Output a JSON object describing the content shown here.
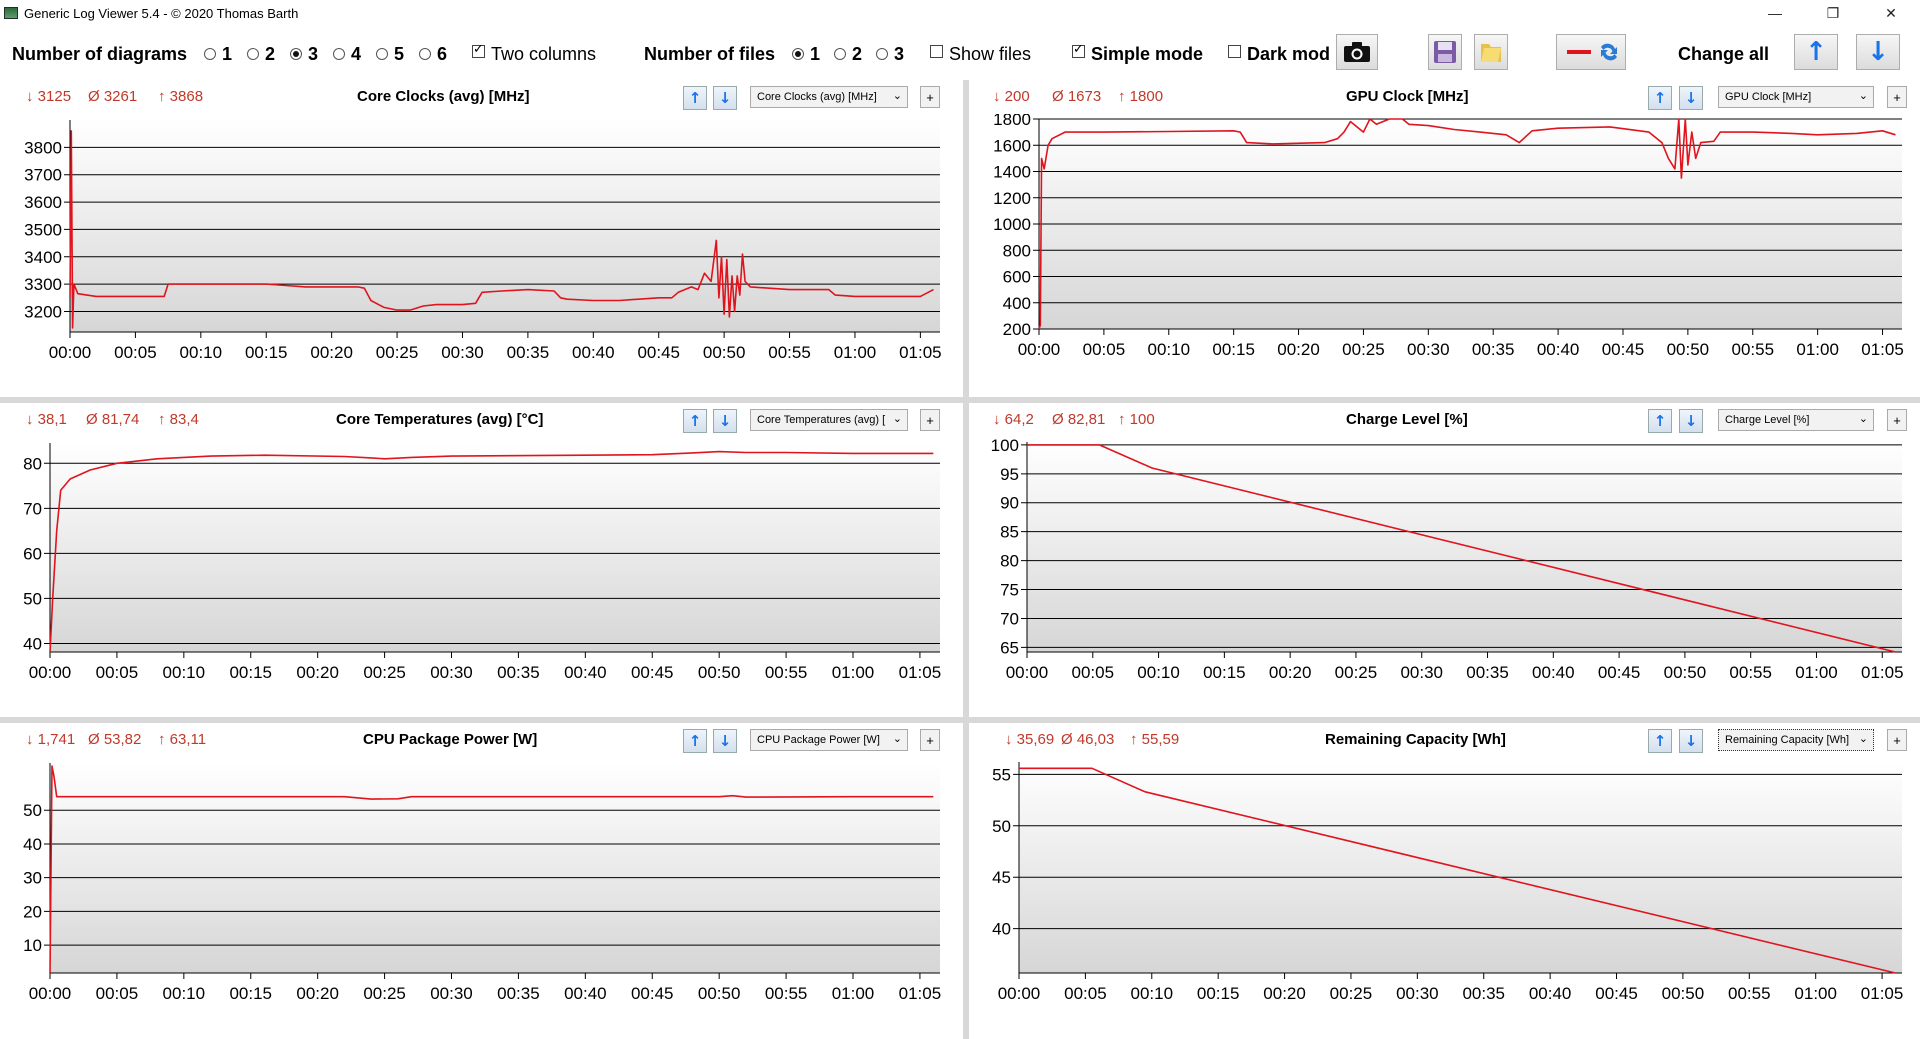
{
  "window": {
    "title": "Generic Log Viewer 5.4 - © 2020 Thomas Barth",
    "controls": [
      "—",
      "❐",
      "✕"
    ]
  },
  "toolbar": {
    "num_diagrams_label": "Number of diagrams",
    "diagram_options": [
      "1",
      "2",
      "3",
      "4",
      "5",
      "6"
    ],
    "diagram_selected": "3",
    "two_columns_label": "Two columns",
    "two_columns_checked": true,
    "num_files_label": "Number of files",
    "file_options": [
      "1",
      "2",
      "3"
    ],
    "file_selected": "1",
    "show_files_label": "Show files",
    "simple_mode_label": "Simple mode",
    "simple_mode_checked": true,
    "dark_mode_label": "Dark mod",
    "change_all_label": "Change all"
  },
  "colors": {
    "line": "#e0141e",
    "stat": "#c0392b",
    "accent": "#1a73e8"
  },
  "panels": [
    {
      "min": "↓ 3125",
      "avg": "Ø 3261",
      "max": "↑ 3868",
      "title": "Core Clocks (avg) [MHz]",
      "combo": "Core Clocks (avg) [MHz]"
    },
    {
      "min": "↓ 200",
      "avg": "Ø 1673",
      "max": "↑ 1800",
      "title": "GPU Clock [MHz]",
      "combo": "GPU Clock [MHz]"
    },
    {
      "min": "↓ 38,1",
      "avg": "Ø 81,74",
      "max": "↑ 83,4",
      "title": "Core Temperatures (avg) [°C]",
      "combo": "Core Temperatures (avg) ["
    },
    {
      "min": "↓ 64,2",
      "avg": "Ø 82,81",
      "max": "↑ 100",
      "title": "Charge Level [%]",
      "combo": "Charge Level [%]"
    },
    {
      "min": "↓ 1,741",
      "avg": "Ø 53,82",
      "max": "↑ 63,11",
      "title": "CPU Package Power [W]",
      "combo": "CPU Package Power [W]"
    },
    {
      "min": "↓ 35,69",
      "avg": "Ø 46,03",
      "max": "↑ 55,59",
      "title": "Remaining Capacity [Wh]",
      "combo": "Remaining Capacity [Wh]"
    }
  ],
  "chart_data": [
    {
      "type": "line",
      "title": "Core Clocks (avg) [MHz]",
      "x_ticks": [
        "00:00",
        "00:05",
        "00:10",
        "00:15",
        "00:20",
        "00:25",
        "00:30",
        "00:35",
        "00:40",
        "00:45",
        "00:50",
        "00:55",
        "01:00",
        "01:05"
      ],
      "y_ticks": [
        3200,
        3300,
        3400,
        3500,
        3600,
        3700,
        3800
      ],
      "ylim": [
        3125,
        3900
      ],
      "xlim": [
        0,
        66.5
      ],
      "series": [
        {
          "points": [
            [
              0,
              3250
            ],
            [
              0.1,
              3860
            ],
            [
              0.2,
              3140
            ],
            [
              0.3,
              3300
            ],
            [
              0.6,
              3265
            ],
            [
              2,
              3255
            ],
            [
              5,
              3255
            ],
            [
              7.2,
              3255
            ],
            [
              7.5,
              3300
            ],
            [
              10,
              3300
            ],
            [
              15,
              3300
            ],
            [
              16.5,
              3295
            ],
            [
              18,
              3290
            ],
            [
              22,
              3290
            ],
            [
              22.5,
              3285
            ],
            [
              23,
              3240
            ],
            [
              24,
              3215
            ],
            [
              25,
              3205
            ],
            [
              26,
              3205
            ],
            [
              27,
              3220
            ],
            [
              28,
              3225
            ],
            [
              30,
              3225
            ],
            [
              31,
              3230
            ],
            [
              31.5,
              3270
            ],
            [
              33,
              3275
            ],
            [
              35,
              3280
            ],
            [
              37,
              3275
            ],
            [
              37.5,
              3250
            ],
            [
              38,
              3245
            ],
            [
              40,
              3240
            ],
            [
              42,
              3240
            ],
            [
              45,
              3250
            ],
            [
              46,
              3250
            ],
            [
              46.5,
              3270
            ],
            [
              47.5,
              3290
            ],
            [
              48,
              3280
            ],
            [
              48.5,
              3340
            ],
            [
              49,
              3310
            ],
            [
              49.4,
              3460
            ],
            [
              49.6,
              3250
            ],
            [
              49.8,
              3400
            ],
            [
              50,
              3190
            ],
            [
              50.2,
              3390
            ],
            [
              50.4,
              3180
            ],
            [
              50.6,
              3330
            ],
            [
              50.8,
              3200
            ],
            [
              51,
              3330
            ],
            [
              51.2,
              3260
            ],
            [
              51.4,
              3410
            ],
            [
              51.6,
              3310
            ],
            [
              52,
              3290
            ],
            [
              55,
              3280
            ],
            [
              58,
              3280
            ],
            [
              58.5,
              3260
            ],
            [
              60,
              3255
            ],
            [
              63,
              3255
            ],
            [
              65,
              3255
            ],
            [
              66,
              3280
            ]
          ]
        }
      ]
    },
    {
      "type": "line",
      "title": "GPU Clock [MHz]",
      "x_ticks": [
        "00:00",
        "00:05",
        "00:10",
        "00:15",
        "00:20",
        "00:25",
        "00:30",
        "00:35",
        "00:40",
        "00:45",
        "00:50",
        "00:55",
        "01:00",
        "01:05"
      ],
      "y_ticks": [
        200,
        400,
        600,
        800,
        1000,
        1200,
        1400,
        1600,
        1800
      ],
      "ylim": [
        200,
        1800
      ],
      "xlim": [
        0,
        66.5
      ],
      "series": [
        {
          "points": [
            [
              0,
              200
            ],
            [
              0.1,
              230
            ],
            [
              0.2,
              1500
            ],
            [
              0.4,
              1420
            ],
            [
              0.7,
              1600
            ],
            [
              1,
              1650
            ],
            [
              2,
              1700
            ],
            [
              5,
              1700
            ],
            [
              10,
              1705
            ],
            [
              15,
              1710
            ],
            [
              15.5,
              1700
            ],
            [
              16,
              1620
            ],
            [
              18,
              1610
            ],
            [
              22,
              1620
            ],
            [
              23,
              1650
            ],
            [
              23.5,
              1700
            ],
            [
              24,
              1780
            ],
            [
              25,
              1700
            ],
            [
              25.5,
              1800
            ],
            [
              26,
              1760
            ],
            [
              27,
              1800
            ],
            [
              28,
              1800
            ],
            [
              28.5,
              1760
            ],
            [
              30,
              1750
            ],
            [
              32,
              1720
            ],
            [
              34,
              1700
            ],
            [
              36,
              1680
            ],
            [
              37,
              1620
            ],
            [
              38,
              1710
            ],
            [
              40,
              1730
            ],
            [
              44,
              1740
            ],
            [
              47,
              1700
            ],
            [
              48,
              1620
            ],
            [
              48.5,
              1500
            ],
            [
              49,
              1420
            ],
            [
              49.3,
              1800
            ],
            [
              49.5,
              1350
            ],
            [
              49.8,
              1800
            ],
            [
              50,
              1450
            ],
            [
              50.3,
              1700
            ],
            [
              50.6,
              1500
            ],
            [
              51,
              1620
            ],
            [
              52,
              1630
            ],
            [
              52.5,
              1700
            ],
            [
              55,
              1700
            ],
            [
              58,
              1690
            ],
            [
              60,
              1680
            ],
            [
              63,
              1690
            ],
            [
              65,
              1710
            ],
            [
              66,
              1680
            ]
          ]
        }
      ]
    },
    {
      "type": "line",
      "title": "Core Temperatures (avg) [°C]",
      "x_ticks": [
        "00:00",
        "00:05",
        "00:10",
        "00:15",
        "00:20",
        "00:25",
        "00:30",
        "00:35",
        "00:40",
        "00:45",
        "00:50",
        "00:55",
        "01:00",
        "01:05"
      ],
      "y_ticks": [
        40,
        50,
        60,
        70,
        80
      ],
      "ylim": [
        38.1,
        84.5
      ],
      "xlim": [
        0,
        66.5
      ],
      "series": [
        {
          "points": [
            [
              0,
              38.1
            ],
            [
              0.2,
              50
            ],
            [
              0.5,
              65
            ],
            [
              0.8,
              74
            ],
            [
              1.5,
              76.5
            ],
            [
              3,
              78.5
            ],
            [
              5,
              80
            ],
            [
              8,
              81
            ],
            [
              12,
              81.6
            ],
            [
              16,
              81.8
            ],
            [
              22,
              81.5
            ],
            [
              24,
              81.2
            ],
            [
              25,
              81.0
            ],
            [
              27,
              81.3
            ],
            [
              30,
              81.6
            ],
            [
              40,
              81.8
            ],
            [
              45,
              81.9
            ],
            [
              48,
              82.3
            ],
            [
              50,
              82.6
            ],
            [
              52,
              82.4
            ],
            [
              55,
              82.4
            ],
            [
              60,
              82.2
            ],
            [
              66,
              82.2
            ]
          ]
        }
      ]
    },
    {
      "type": "line",
      "title": "Charge Level [%]",
      "x_ticks": [
        "00:00",
        "00:05",
        "00:10",
        "00:15",
        "00:20",
        "00:25",
        "00:30",
        "00:35",
        "00:40",
        "00:45",
        "00:50",
        "00:55",
        "01:00",
        "01:05"
      ],
      "y_ticks": [
        65,
        70,
        75,
        80,
        85,
        90,
        95,
        100
      ],
      "ylim": [
        64.2,
        100.5
      ],
      "xlim": [
        0,
        66.5
      ],
      "series": [
        {
          "points": [
            [
              0,
              100
            ],
            [
              5.5,
              100
            ],
            [
              9.5,
              96
            ],
            [
              66,
              64.2
            ]
          ]
        }
      ]
    },
    {
      "type": "line",
      "title": "CPU Package Power [W]",
      "x_ticks": [
        "00:00",
        "00:05",
        "00:10",
        "00:15",
        "00:20",
        "00:25",
        "00:30",
        "00:35",
        "00:40",
        "00:45",
        "00:50",
        "00:55",
        "01:00",
        "01:05"
      ],
      "y_ticks": [
        10,
        20,
        30,
        40,
        50
      ],
      "ylim": [
        1.741,
        64
      ],
      "xlim": [
        0,
        66.5
      ],
      "series": [
        {
          "points": [
            [
              0,
              1.741
            ],
            [
              0.15,
              63.1
            ],
            [
              0.3,
              60
            ],
            [
              0.5,
              54
            ],
            [
              10,
              54
            ],
            [
              22,
              54
            ],
            [
              24,
              53.3
            ],
            [
              26,
              53.4
            ],
            [
              27,
              54
            ],
            [
              50,
              54
            ],
            [
              51,
              54.3
            ],
            [
              52,
              53.9
            ],
            [
              60,
              54
            ],
            [
              66,
              54
            ]
          ]
        }
      ]
    },
    {
      "type": "line",
      "title": "Remaining Capacity [Wh]",
      "x_ticks": [
        "00:00",
        "00:05",
        "00:10",
        "00:15",
        "00:20",
        "00:25",
        "00:30",
        "00:35",
        "00:40",
        "00:45",
        "00:50",
        "00:55",
        "01:00",
        "01:05"
      ],
      "y_ticks": [
        40,
        45,
        50,
        55
      ],
      "ylim": [
        35.69,
        56.2
      ],
      "xlim": [
        0,
        66.5
      ],
      "series": [
        {
          "points": [
            [
              0,
              55.59
            ],
            [
              5.5,
              55.59
            ],
            [
              9.5,
              53.3
            ],
            [
              66,
              35.69
            ]
          ]
        }
      ]
    }
  ]
}
